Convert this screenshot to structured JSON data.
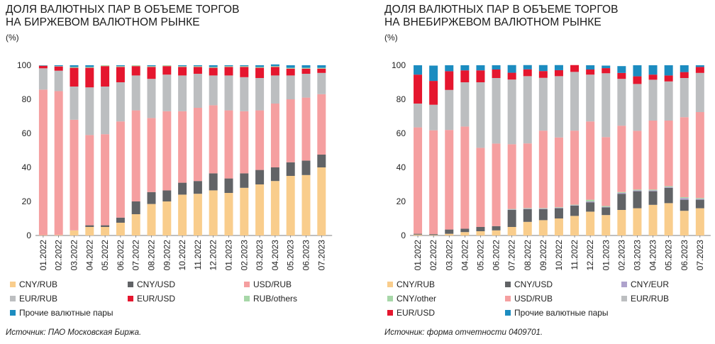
{
  "colors": {
    "CNY/RUB": "#f9cd8c",
    "CNY/USD": "#616366",
    "USD/RUB": "#f59fa0",
    "EUR/RUB": "#bcbec0",
    "EUR/USD": "#e5162e",
    "RUB/others": "#a7d7a8",
    "Прочие валютные пары": "#1c8cc0",
    "CNY/EUR": "#aea2cc",
    "CNY/other": "#a7d7a8"
  },
  "left": {
    "title_line1": "ДОЛЯ ВАЛЮТНЫХ ПАР В ОБЪЕМЕ ТОРГОВ",
    "title_line2": "НА БИРЖЕВОМ ВАЛЮТНОМ РЫНКЕ",
    "unit": "(%)",
    "source": "Источник: ПАО Московская Биржа.",
    "legend": [
      "CNY/RUB",
      "CNY/USD",
      "USD/RUB",
      "EUR/RUB",
      "EUR/USD",
      "RUB/others",
      "Прочие валютные пары"
    ]
  },
  "right": {
    "title_line1": "ДОЛЯ ВАЛЮТНЫХ ПАР В ОБЪЕМЕ ТОРГОВ",
    "title_line2": "НА ВНЕБИРЖЕВОМ ВАЛЮТНОМ РЫНКЕ",
    "unit": "(%)",
    "source": "Источник: форма отчетности 0409701.",
    "legend": [
      "CNY/RUB",
      "CNY/USD",
      "CNY/EUR",
      "CNY/other",
      "USD/RUB",
      "EUR/RUB",
      "EUR/USD",
      "Прочие валютные пары"
    ]
  },
  "chart_data": [
    {
      "type": "bar",
      "stacked": true,
      "title": "ДОЛЯ ВАЛЮТНЫХ ПАР В ОБЪЕМЕ ТОРГОВ НА БИРЖЕВОМ ВАЛЮТНОМ РЫНКЕ",
      "ylabel": "(%)",
      "ylim": [
        0,
        100
      ],
      "yticks": [
        0,
        20,
        40,
        60,
        80,
        100
      ],
      "grid": false,
      "legend_position": "bottom",
      "categories": [
        "01.2022",
        "02.2022",
        "03.2022",
        "04.2022",
        "05.2022",
        "06.2022",
        "07.2022",
        "08.2022",
        "09.2022",
        "10.2022",
        "11.2022",
        "12.2022",
        "01.2023",
        "02.2023",
        "03.2023",
        "04.2023",
        "05.2023",
        "06.2023",
        "07.2023"
      ],
      "series": [
        {
          "name": "CNY/RUB",
          "values": [
            0.2,
            0.3,
            3,
            5,
            5,
            7.5,
            12.5,
            18.5,
            20,
            24,
            24.5,
            26.5,
            25,
            28,
            30,
            32,
            35,
            35.5,
            40
          ]
        },
        {
          "name": "CNY/USD",
          "values": [
            0,
            0,
            0,
            1,
            1,
            3,
            7.5,
            7,
            6.5,
            7,
            7.5,
            10,
            8.5,
            8.5,
            8.5,
            8,
            8,
            8.5,
            7.5
          ]
        },
        {
          "name": "USD/RUB",
          "values": [
            85.5,
            84.5,
            65,
            53,
            53.5,
            56.5,
            53.5,
            43.5,
            46.5,
            42,
            43,
            40,
            40,
            36.5,
            35,
            37.5,
            37,
            37,
            35.5
          ]
        },
        {
          "name": "EUR/RUB",
          "values": [
            12.5,
            12,
            19.5,
            28,
            28,
            23,
            20.5,
            23,
            21.5,
            21,
            20,
            17.5,
            20.5,
            20,
            19,
            16.5,
            14,
            14,
            12.5
          ]
        },
        {
          "name": "EUR/USD",
          "values": [
            1.5,
            2.5,
            11,
            11.5,
            12,
            9,
            5.5,
            7,
            5,
            5,
            4,
            4.5,
            5,
            6,
            6,
            5,
            4,
            3,
            2.5
          ]
        },
        {
          "name": "RUB/others",
          "values": [
            0.1,
            0.2,
            0.5,
            0.5,
            0.5,
            0.5,
            0.5,
            0.5,
            0.5,
            0.5,
            0.5,
            0.5,
            0.5,
            0.5,
            0.5,
            0.5,
            0.5,
            0.5,
            0.5
          ]
        },
        {
          "name": "Прочие валютные пары",
          "values": [
            0.2,
            0.5,
            1,
            1,
            0,
            0.5,
            0,
            0.5,
            0,
            0.5,
            0.5,
            1,
            0.5,
            0.5,
            1,
            1,
            1.5,
            1.5,
            1.5
          ]
        }
      ]
    },
    {
      "type": "bar",
      "stacked": true,
      "title": "ДОЛЯ ВАЛЮТНЫХ ПАР В ОБЪЕМЕ ТОРГОВ НА ВНЕБИРЖЕВОМ ВАЛЮТНОМ РЫНКЕ",
      "ylabel": "(%)",
      "ylim": [
        0,
        100
      ],
      "yticks": [
        0,
        20,
        40,
        60,
        80,
        100
      ],
      "grid": false,
      "legend_position": "bottom",
      "categories": [
        "01.2022",
        "02.2022",
        "03.2022",
        "04.2022",
        "05.2022",
        "06.2022",
        "07.2022",
        "08.2022",
        "09.2022",
        "10.2022",
        "11.2022",
        "12.2022",
        "01.2023",
        "02.2023",
        "03.2023",
        "04.2023",
        "05.2023",
        "06.2023",
        "07.2023"
      ],
      "series": [
        {
          "name": "CNY/RUB",
          "values": [
            0.5,
            0.3,
            1,
            2,
            2.5,
            3,
            5,
            8,
            9,
            10,
            11.5,
            14,
            12,
            15,
            16,
            18,
            19,
            14.5,
            16
          ]
        },
        {
          "name": "CNY/USD",
          "values": [
            0.5,
            0.5,
            2.5,
            2,
            2.5,
            2.5,
            10,
            7.5,
            6.5,
            6,
            6,
            5.5,
            4.5,
            9.5,
            10,
            8,
            9,
            6.5,
            5
          ]
        },
        {
          "name": "CNY/EUR",
          "values": [
            0,
            0,
            0,
            0,
            0,
            0,
            0.3,
            0.3,
            0.3,
            0.3,
            0.3,
            0.5,
            0.3,
            0.5,
            0.5,
            0.5,
            0.5,
            1,
            0.5
          ]
        },
        {
          "name": "CNY/other",
          "values": [
            0,
            0,
            0,
            0,
            0,
            0,
            0.3,
            0.3,
            0.3,
            0.3,
            0.3,
            1,
            0.5,
            0.5,
            0.5,
            0.5,
            0.5,
            0.5,
            0.5
          ]
        },
        {
          "name": "USD/RUB",
          "values": [
            62.5,
            61,
            58.5,
            60,
            46.5,
            48.5,
            38,
            38,
            45.5,
            41,
            43.5,
            46,
            40.5,
            39,
            34.5,
            40.5,
            38.5,
            47,
            50.5
          ]
        },
        {
          "name": "EUR/RUB",
          "values": [
            14,
            15,
            23.5,
            26,
            38.5,
            38.5,
            38,
            39.5,
            31,
            36,
            34.5,
            27.5,
            37.5,
            27.5,
            27.5,
            24,
            23,
            23,
            23
          ]
        },
        {
          "name": "EUR/USD",
          "values": [
            17,
            14,
            11,
            7,
            7,
            5,
            4,
            4,
            4,
            3.5,
            4,
            3,
            3,
            3.5,
            4.5,
            3,
            3.5,
            3.5,
            3.5
          ]
        },
        {
          "name": "Прочие валютные пары",
          "values": [
            5.5,
            9,
            3.5,
            3,
            3,
            2.5,
            4.5,
            2.5,
            3.5,
            3,
            0,
            2.5,
            1.5,
            4,
            6.5,
            5.5,
            6,
            4,
            1
          ]
        }
      ]
    }
  ]
}
